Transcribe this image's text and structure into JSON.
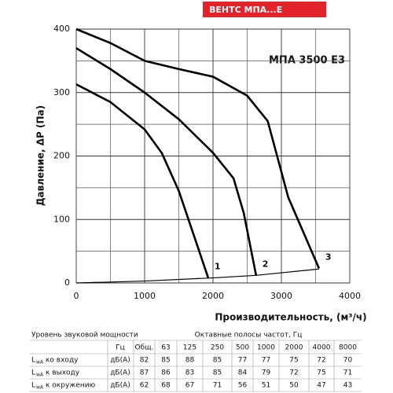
{
  "header": {
    "badge": "ВЕНТС МПА...Е"
  },
  "chart_data": {
    "type": "line",
    "title": "МПА 3500 Е3",
    "x_label": "Производительность, (м³/ч)",
    "y_label": "Давление, ΔP (Па)",
    "xlim": [
      0,
      4000
    ],
    "ylim": [
      0,
      400
    ],
    "xticks": [
      0,
      1000,
      2000,
      3000,
      4000
    ],
    "yticks": [
      0,
      100,
      200,
      300,
      400
    ],
    "xgrid": [
      500,
      1500,
      2500,
      3500
    ],
    "ygrid": [
      50,
      150,
      250,
      350
    ],
    "grid": true,
    "series": [
      {
        "name": "1",
        "color": "#000000",
        "x": [
          0,
          500,
          1000,
          1250,
          1500,
          1930
        ],
        "values": [
          313,
          285,
          242,
          205,
          145,
          8
        ]
      },
      {
        "name": "2",
        "color": "#000000",
        "x": [
          0,
          500,
          1000,
          1500,
          2000,
          2300,
          2450,
          2630
        ],
        "values": [
          370,
          337,
          300,
          258,
          205,
          165,
          110,
          12
        ]
      },
      {
        "name": "3",
        "color": "#000000",
        "x": [
          0,
          500,
          1000,
          1500,
          2000,
          2500,
          2800,
          3100,
          3550
        ],
        "values": [
          400,
          378,
          350,
          337,
          325,
          295,
          255,
          135,
          23
        ]
      }
    ],
    "system_curve": {
      "color": "#000000",
      "x": [
        0,
        1000,
        2000,
        2630,
        3000,
        3550
      ],
      "values": [
        0,
        3,
        8,
        12,
        16,
        22
      ]
    }
  },
  "table": {
    "title": "Уровень звуковой мощности",
    "bands_title": "Октавные полосы частот, Гц",
    "unit_header": "Гц",
    "columns": [
      "Общ.",
      "63",
      "125",
      "250",
      "500",
      "1000",
      "2000",
      "4000",
      "8000"
    ],
    "rows": [
      {
        "symbol": "L",
        "sub": "wA",
        "label": "ко входу",
        "unit": "дБ(А)",
        "values": [
          82,
          85,
          88,
          85,
          77,
          77,
          75,
          72,
          70
        ]
      },
      {
        "symbol": "L",
        "sub": "wA",
        "label": "к выходу",
        "unit": "дБ(А)",
        "values": [
          87,
          86,
          83,
          85,
          84,
          79,
          72,
          75,
          71
        ]
      },
      {
        "symbol": "L",
        "sub": "wA",
        "label": "к окружению",
        "unit": "дБ(А)",
        "values": [
          62,
          68,
          67,
          71,
          56,
          51,
          50,
          47,
          43
        ]
      }
    ]
  }
}
